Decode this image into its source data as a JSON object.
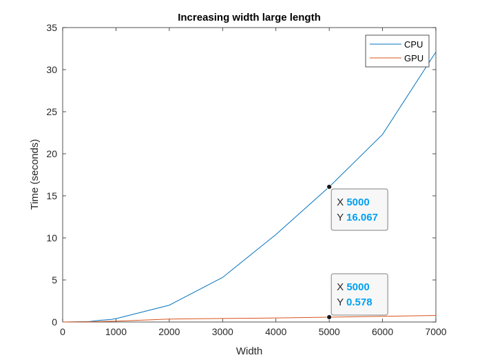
{
  "chart_data": {
    "type": "line",
    "title": "Increasing width large length",
    "xlabel": "Width",
    "ylabel": "Time (seconds)",
    "xlim": [
      0,
      7000
    ],
    "ylim": [
      0,
      35
    ],
    "xticks": [
      0,
      1000,
      2000,
      3000,
      4000,
      5000,
      6000,
      7000
    ],
    "yticks": [
      0,
      5,
      10,
      15,
      20,
      25,
      30,
      35
    ],
    "grid": false,
    "legend_position": "top-right",
    "series": [
      {
        "name": "CPU",
        "color": "#0072BD",
        "x": [
          0,
          500,
          700,
          900,
          1000,
          2000,
          3000,
          4000,
          5000,
          6000,
          7000
        ],
        "y": [
          0,
          0.05,
          0.2,
          0.3,
          0.4,
          2.0,
          5.3,
          10.4,
          16.067,
          22.3,
          32.1
        ]
      },
      {
        "name": "GPU",
        "color": "#D95319",
        "x": [
          0,
          500,
          700,
          900,
          1000,
          2000,
          3000,
          4000,
          5000,
          6000,
          7000
        ],
        "y": [
          0,
          0.02,
          0.05,
          0.08,
          0.1,
          0.35,
          0.42,
          0.48,
          0.578,
          0.68,
          0.78
        ]
      }
    ],
    "annotations": [
      {
        "x_label": "X",
        "x_value": "5000",
        "y_label": "Y",
        "y_value": "16.067",
        "x": 5000,
        "y": 16.067,
        "series": "CPU",
        "placement": "below-right"
      },
      {
        "x_label": "X",
        "x_value": "5000",
        "y_label": "Y",
        "y_value": "0.578",
        "x": 5000,
        "y": 0.578,
        "series": "GPU",
        "placement": "above-right"
      }
    ]
  }
}
